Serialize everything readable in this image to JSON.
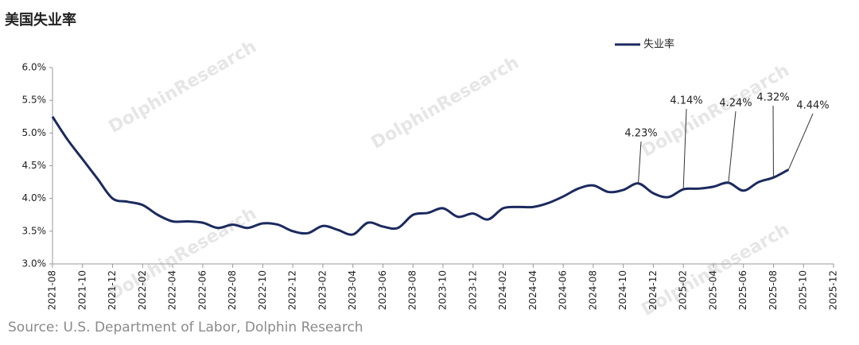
{
  "chart_data": {
    "type": "line",
    "title": "美国失业率",
    "source": "Source: U.S. Department of Labor, Dolphin Research",
    "watermark": "DolphinResearch",
    "legend": "top",
    "categories": [
      "2021-08",
      null,
      "2021-10",
      null,
      "2021-12",
      null,
      "2022-02",
      null,
      "2022-04",
      null,
      "2022-06",
      null,
      "2022-08",
      null,
      "2022-10",
      null,
      "2022-12",
      null,
      "2023-02",
      null,
      "2023-04",
      null,
      "2023-06",
      null,
      "2023-08",
      null,
      "2023-10",
      null,
      "2023-12",
      null,
      "2024-02",
      null,
      "2024-04",
      null,
      "2024-06",
      null,
      "2024-08",
      null,
      "2024-10",
      null,
      "2024-12",
      null,
      "2025-02",
      null,
      "2025-04",
      null,
      "2025-06",
      null,
      "2025-08",
      null,
      "2025-10",
      null,
      "2025-12"
    ],
    "series": [
      {
        "name": "失业率",
        "color": "#1b2a5e",
        "values": [
          5.25,
          4.9,
          4.6,
          4.3,
          4.0,
          3.95,
          3.9,
          3.75,
          3.65,
          3.65,
          3.63,
          3.55,
          3.6,
          3.55,
          3.62,
          3.6,
          3.5,
          3.47,
          3.58,
          3.52,
          3.45,
          3.63,
          3.57,
          3.55,
          3.75,
          3.78,
          3.85,
          3.72,
          3.77,
          3.68,
          3.85,
          3.87,
          3.87,
          3.93,
          4.03,
          4.15,
          4.2,
          4.1,
          4.13,
          4.23,
          4.08,
          4.02,
          4.14,
          4.15,
          4.18,
          4.24,
          4.12,
          4.25,
          4.32,
          4.44,
          null,
          null,
          null
        ],
        "value_labels": [
          null,
          null,
          null,
          null,
          null,
          null,
          null,
          null,
          null,
          null,
          null,
          null,
          null,
          null,
          null,
          null,
          null,
          null,
          null,
          null,
          null,
          null,
          null,
          null,
          null,
          null,
          null,
          null,
          null,
          null,
          null,
          null,
          null,
          null,
          null,
          null,
          null,
          null,
          null,
          "4.23%",
          null,
          null,
          "4.14%",
          null,
          null,
          "4.24%",
          null,
          null,
          "4.32%",
          "4.44%",
          null,
          null,
          null
        ]
      }
    ],
    "ylim": [
      3,
      6
    ],
    "yticks": [
      {
        "value": 3,
        "label": "3.0%"
      },
      {
        "value": 3.5,
        "label": "3.5%"
      },
      {
        "value": 4,
        "label": "4.0%"
      },
      {
        "value": 4.5,
        "label": "4.5%"
      },
      {
        "value": 5,
        "label": "5.0%"
      },
      {
        "value": 5.5,
        "label": "5.5%"
      },
      {
        "value": 6,
        "label": "6.0%"
      }
    ],
    "grid": false
  }
}
